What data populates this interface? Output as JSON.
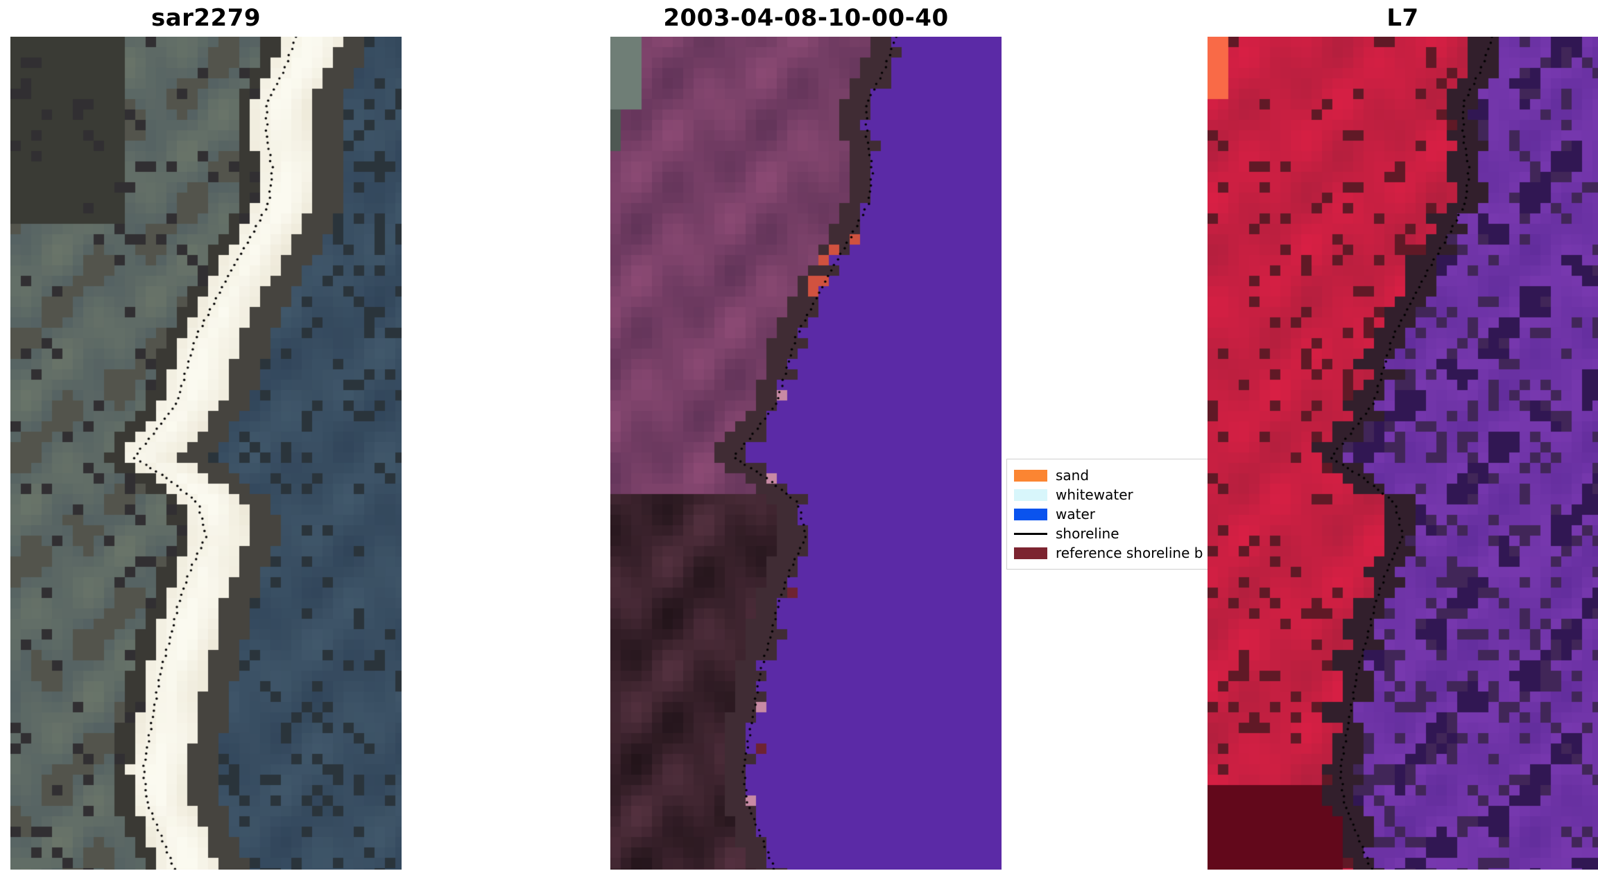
{
  "figure": {
    "background": "#ffffff",
    "panels": [
      {
        "id": "sar2279",
        "title": "sar2279",
        "kind": "sar",
        "colors": {
          "land_a": "#6a7569",
          "land_b": "#4c5a60",
          "land_light": "#a6a897",
          "band": "#e9e3d1",
          "band_bright": "#fbfaf0",
          "water_a": "#41586b",
          "water_b": "#31455a",
          "water_light": "#5d7384",
          "bottom_dark": "#2b4a66"
        }
      },
      {
        "id": "classified",
        "title": "2003-04-08-10-00-40",
        "kind": "classified",
        "colors": {
          "land_a": "#8c4a74",
          "land_b": "#623459",
          "land_c": "#a8627f",
          "water": "#5b2aa6",
          "corner": "#6f7e76",
          "accent": "#d1523f",
          "mark_dark": "#6e2331",
          "mark_pink": "#c88aa4",
          "edge_light": "#b77e95"
        },
        "marks": [
          {
            "y": 0.425,
            "dx": 0.015,
            "c": "mark_pink"
          },
          {
            "y": 0.53,
            "dx": 0.012,
            "c": "mark_pink"
          },
          {
            "y": 0.665,
            "dx": 0.035,
            "c": "mark_dark"
          },
          {
            "y": 0.8,
            "dx": 0.012,
            "c": "mark_pink"
          },
          {
            "y": 0.85,
            "dx": 0.045,
            "c": "mark_dark"
          },
          {
            "y": 0.92,
            "dx": 0.02,
            "c": "mark_pink"
          }
        ]
      },
      {
        "id": "l7",
        "title": "L7",
        "kind": "l7",
        "colors": {
          "land_a": "#d81f44",
          "land_b": "#b41f3e",
          "land_deep": "#c40f35",
          "corner": "#ff7747",
          "water_a": "#7f3cb5",
          "water_b": "#622d9c",
          "water_c": "#9054c4",
          "water_dark": "#51268a",
          "transition": "#c87ab0"
        }
      }
    ],
    "legend": {
      "items": [
        {
          "label": "sand",
          "swatch": "#fb8532",
          "type": "patch"
        },
        {
          "label": "whitewater",
          "swatch": "#d8f6fb",
          "type": "patch"
        },
        {
          "label": "water",
          "swatch": "#0a53ee",
          "type": "patch"
        },
        {
          "label": "shoreline",
          "swatch": "#000000",
          "type": "line"
        },
        {
          "label": "reference shoreline b",
          "swatch": "#7c2430",
          "type": "patch"
        }
      ]
    }
  },
  "chart_data": {
    "type": "image-grid",
    "title": "",
    "panel_titles": [
      "sar2279",
      "2003-04-08-10-00-40",
      "L7"
    ],
    "description": "Three co-registered coastal satellite image panels (SAR composite 'sar2279', a classified optical scene dated 2003-04-08-10-00-40 with purple water mask, and an 'L7' Landsat-7 false-colour image with red land and purple water). The same mapped shoreline is overlaid on each panel as a black dotted line. A legend identifies sand, whitewater, water classes, the shoreline line, and a reference shoreline buffer.",
    "legend_entries": [
      "sand",
      "whitewater",
      "water",
      "shoreline",
      "reference shoreline b"
    ],
    "shoreline_points": [
      [
        0.0,
        0.73
      ],
      [
        0.04,
        0.7
      ],
      [
        0.08,
        0.655
      ],
      [
        0.12,
        0.655
      ],
      [
        0.16,
        0.67
      ],
      [
        0.2,
        0.66
      ],
      [
        0.24,
        0.615
      ],
      [
        0.28,
        0.565
      ],
      [
        0.32,
        0.52
      ],
      [
        0.36,
        0.475
      ],
      [
        0.4,
        0.45
      ],
      [
        0.44,
        0.425
      ],
      [
        0.48,
        0.36
      ],
      [
        0.505,
        0.315
      ],
      [
        0.53,
        0.4
      ],
      [
        0.56,
        0.48
      ],
      [
        0.6,
        0.5
      ],
      [
        0.64,
        0.46
      ],
      [
        0.68,
        0.43
      ],
      [
        0.72,
        0.41
      ],
      [
        0.76,
        0.385
      ],
      [
        0.8,
        0.37
      ],
      [
        0.84,
        0.355
      ],
      [
        0.88,
        0.34
      ],
      [
        0.92,
        0.35
      ],
      [
        0.96,
        0.385
      ],
      [
        1.0,
        0.42
      ]
    ]
  }
}
